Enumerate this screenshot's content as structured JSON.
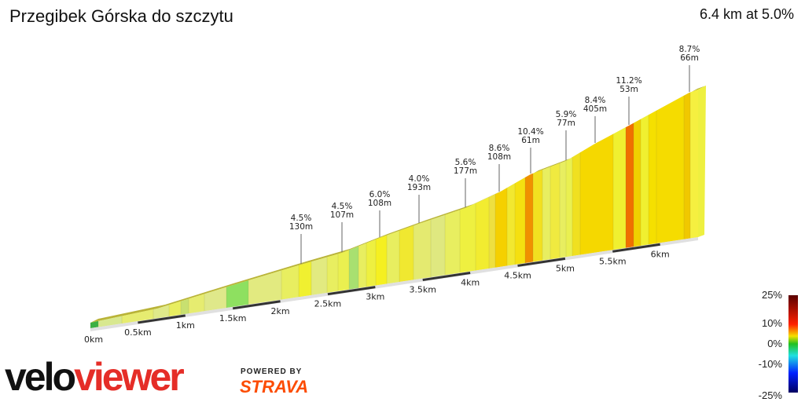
{
  "header": {
    "title": "Przegibek Górska do szczytu",
    "summary": "6.4 km at 5.0%"
  },
  "chart_data": {
    "type": "area",
    "title": "Przegibek Górska do szczytu",
    "distance_km": 6.4,
    "average_gradient_pct": 5.0,
    "x_ticks": [
      "0km",
      "0.5km",
      "1km",
      "1.5km",
      "2km",
      "2.5km",
      "3km",
      "3.5km",
      "4km",
      "4.5km",
      "5km",
      "5.5km",
      "6km"
    ],
    "segments": [
      {
        "gradient": "4.5%",
        "length": "130m"
      },
      {
        "gradient": "4.5%",
        "length": "107m"
      },
      {
        "gradient": "6.0%",
        "length": "108m"
      },
      {
        "gradient": "4.0%",
        "length": "193m"
      },
      {
        "gradient": "5.6%",
        "length": "177m"
      },
      {
        "gradient": "8.6%",
        "length": "108m"
      },
      {
        "gradient": "10.4%",
        "length": "61m"
      },
      {
        "gradient": "5.9%",
        "length": "77m"
      },
      {
        "gradient": "8.4%",
        "length": "405m"
      },
      {
        "gradient": "11.2%",
        "length": "53m"
      },
      {
        "gradient": "8.7%",
        "length": "66m"
      }
    ],
    "legend": {
      "labels": [
        "25%",
        "10%",
        "0%",
        "-10%",
        "-25%"
      ],
      "colors": [
        "#5a0000",
        "#ff2000",
        "#f5e000",
        "#20c020",
        "#20e0e0",
        "#0020ff",
        "#000060"
      ]
    }
  },
  "branding": {
    "logo_a": "velo",
    "logo_b": "viewer",
    "powered_by": "POWERED BY",
    "strava": "STRAVA"
  }
}
